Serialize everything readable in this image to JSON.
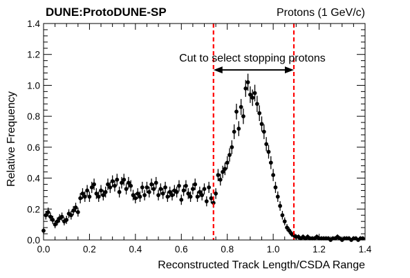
{
  "chart_data": {
    "type": "scatter",
    "title_left": "DUNE:ProtoDUNE-SP",
    "title_right": "Protons (1 GeV/c)",
    "xlabel": "Reconstructed Track Length/CSDA Range",
    "ylabel": "Relative Frequency",
    "xlim": [
      0,
      1.4
    ],
    "ylim": [
      0,
      1.4
    ],
    "x_ticks": [
      "0.0",
      "0.2",
      "0.4",
      "0.6",
      "0.8",
      "1.0",
      "1.2",
      "1.4"
    ],
    "y_ticks": [
      "0.0",
      "0.2",
      "0.4",
      "0.6",
      "0.8",
      "1.0",
      "1.2",
      "1.4"
    ],
    "grid": false,
    "cut_lines": [
      0.74,
      1.09
    ],
    "annotation": "Cut to select stopping protons",
    "annotation_arrow_y": 1.1,
    "x": [
      0.0,
      0.01,
      0.02,
      0.03,
      0.04,
      0.05,
      0.06,
      0.07,
      0.08,
      0.09,
      0.1,
      0.11,
      0.12,
      0.13,
      0.14,
      0.15,
      0.16,
      0.17,
      0.18,
      0.19,
      0.2,
      0.21,
      0.22,
      0.23,
      0.24,
      0.25,
      0.26,
      0.27,
      0.28,
      0.29,
      0.3,
      0.31,
      0.32,
      0.33,
      0.34,
      0.35,
      0.36,
      0.37,
      0.38,
      0.39,
      0.4,
      0.41,
      0.42,
      0.43,
      0.44,
      0.45,
      0.46,
      0.47,
      0.48,
      0.49,
      0.5,
      0.51,
      0.52,
      0.53,
      0.54,
      0.55,
      0.56,
      0.57,
      0.58,
      0.59,
      0.6,
      0.61,
      0.62,
      0.63,
      0.64,
      0.65,
      0.66,
      0.67,
      0.68,
      0.69,
      0.7,
      0.71,
      0.72,
      0.73,
      0.74,
      0.75,
      0.76,
      0.77,
      0.78,
      0.79,
      0.8,
      0.81,
      0.82,
      0.83,
      0.84,
      0.85,
      0.86,
      0.87,
      0.88,
      0.89,
      0.9,
      0.91,
      0.92,
      0.93,
      0.94,
      0.95,
      0.96,
      0.97,
      0.98,
      0.99,
      1.0,
      1.01,
      1.02,
      1.03,
      1.04,
      1.05,
      1.06,
      1.07,
      1.08,
      1.09,
      1.1,
      1.11,
      1.12,
      1.13,
      1.14,
      1.15,
      1.16,
      1.17,
      1.18,
      1.19,
      1.2,
      1.21,
      1.22,
      1.23,
      1.24,
      1.25,
      1.26,
      1.27,
      1.28,
      1.29,
      1.3,
      1.31,
      1.32,
      1.33,
      1.34,
      1.35,
      1.36,
      1.37,
      1.38,
      1.39
    ],
    "y": [
      0.06,
      0.16,
      0.18,
      0.15,
      0.13,
      0.1,
      0.12,
      0.14,
      0.15,
      0.12,
      0.13,
      0.17,
      0.16,
      0.19,
      0.21,
      0.18,
      0.27,
      0.3,
      0.28,
      0.32,
      0.28,
      0.34,
      0.36,
      0.3,
      0.28,
      0.32,
      0.29,
      0.31,
      0.36,
      0.34,
      0.38,
      0.35,
      0.39,
      0.31,
      0.37,
      0.39,
      0.33,
      0.37,
      0.35,
      0.29,
      0.27,
      0.3,
      0.28,
      0.34,
      0.29,
      0.34,
      0.31,
      0.36,
      0.33,
      0.37,
      0.29,
      0.33,
      0.3,
      0.34,
      0.28,
      0.31,
      0.29,
      0.32,
      0.31,
      0.35,
      0.26,
      0.32,
      0.35,
      0.3,
      0.28,
      0.33,
      0.36,
      0.28,
      0.31,
      0.29,
      0.33,
      0.25,
      0.34,
      0.27,
      0.24,
      0.3,
      0.42,
      0.39,
      0.44,
      0.46,
      0.5,
      0.55,
      0.6,
      0.7,
      0.83,
      0.72,
      0.86,
      0.8,
      0.98,
      1.02,
      0.94,
      0.92,
      0.95,
      0.88,
      0.82,
      0.75,
      0.7,
      0.62,
      0.57,
      0.5,
      0.42,
      0.34,
      0.28,
      0.22,
      0.16,
      0.12,
      0.08,
      0.06,
      0.04,
      0.03,
      0.02,
      0.02,
      0.01,
      0.02,
      0.01,
      0.02,
      0.01,
      0.01,
      0.01,
      0.02,
      0.01,
      0.01,
      0.01,
      0.01,
      0.01,
      0.0,
      0.01,
      0.01,
      0.02,
      0.01,
      0.0,
      0.01,
      0.01,
      0.01,
      0.0,
      0.01,
      0.01,
      0.0,
      0.01,
      0.01
    ],
    "marker_color": "#000000",
    "cut_line_color": "#ff0000"
  }
}
